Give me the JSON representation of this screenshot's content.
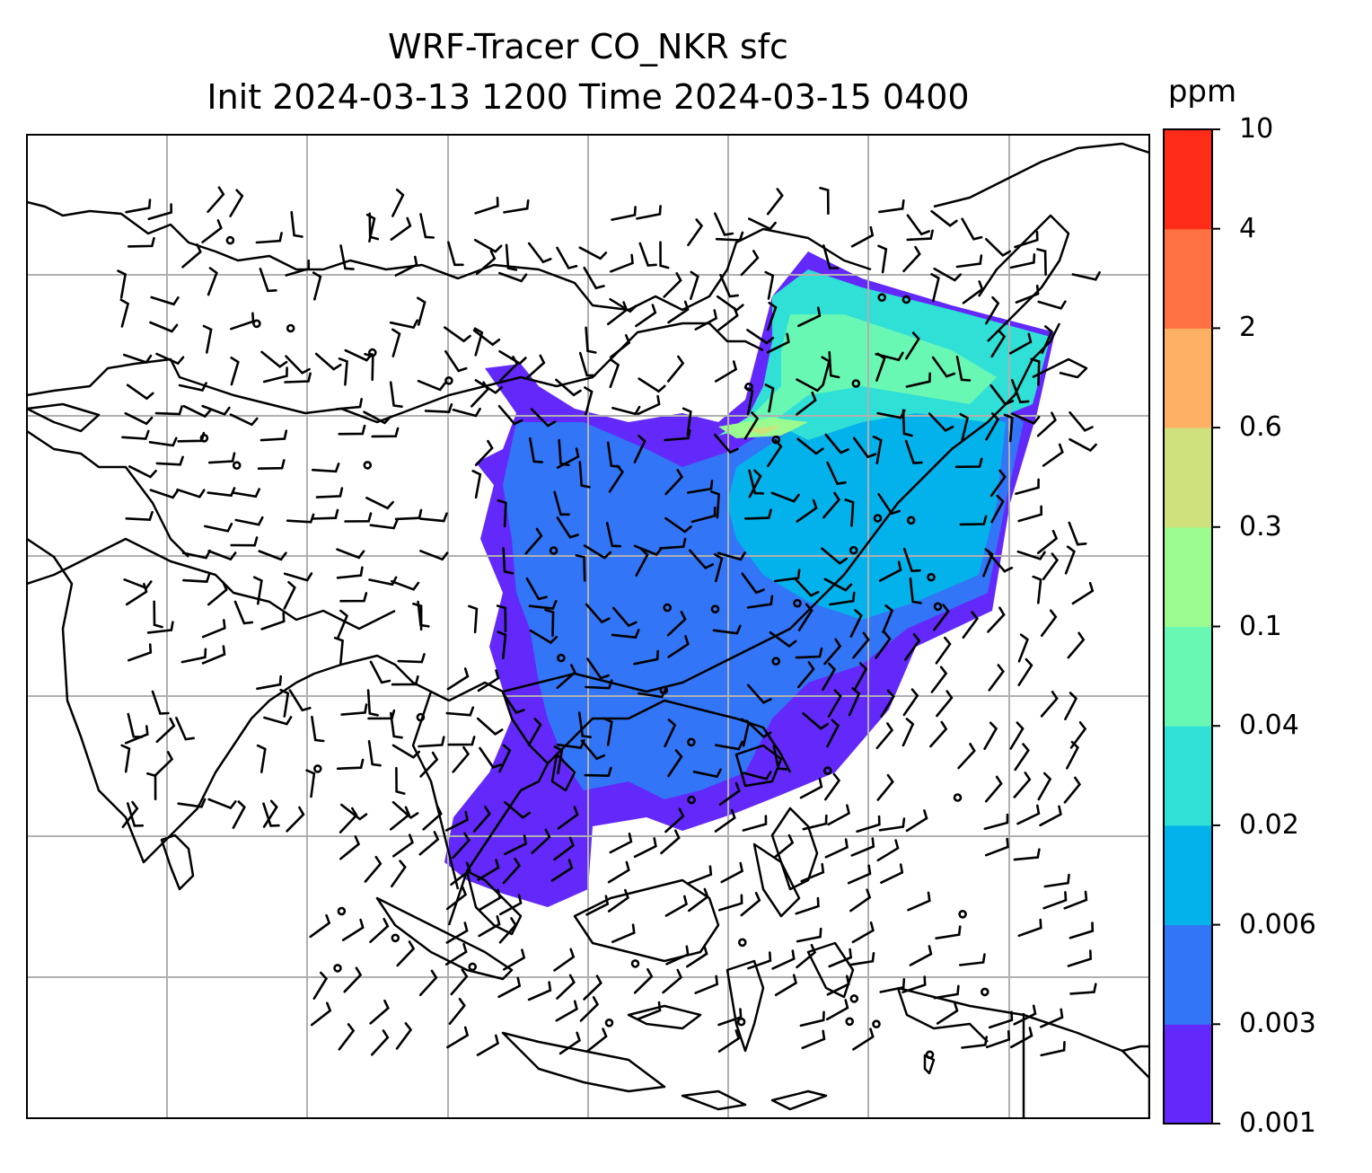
{
  "title": {
    "line1": "WRF-Tracer CO_NKR sfc",
    "line2": "Init 2024-03-13 1200 Time 2024-03-15 0400"
  },
  "colorbar": {
    "unit": "ppm",
    "levels": [
      "0.001",
      "0.003",
      "0.006",
      "0.02",
      "0.04",
      "0.1",
      "0.3",
      "0.6",
      "2",
      "4",
      "10"
    ],
    "colors": [
      "#6329fa",
      "#3275f6",
      "#04b2eb",
      "#30dfd5",
      "#69f8b3",
      "#9bfb8e",
      "#cfe17d",
      "#fdb064",
      "#ff7141",
      "#ff2c1a"
    ]
  },
  "map": {
    "gridlines": true,
    "coastline_color": "#000000",
    "wind_barb_color": "#000000"
  }
}
